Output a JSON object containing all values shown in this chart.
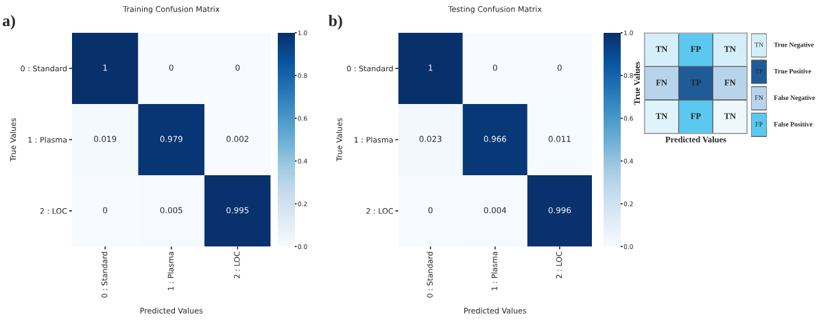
{
  "chart_data": [
    {
      "type": "heatmap",
      "title": "Training Confusion Matrix",
      "xlabel": "Predicted Values",
      "ylabel": "True Values",
      "annotations": [
        "a)"
      ],
      "categories": [
        "0 : Standard",
        "1 : Plasma",
        "2 : LOC"
      ],
      "y_categories": [
        "0 : Standard",
        "1 : Plasma",
        "2 : LOC"
      ],
      "cells": [
        [
          1,
          0,
          0
        ],
        [
          0.019,
          0.979,
          0.002
        ],
        [
          0,
          0.005,
          0.995
        ]
      ],
      "clim": [
        0,
        1
      ],
      "cticks": [
        {
          "value": 0,
          "label": "0.0"
        },
        {
          "value": 0.2,
          "label": "0.2"
        },
        {
          "value": 0.4,
          "label": "0.4"
        },
        {
          "value": 0.6,
          "label": "0.6"
        },
        {
          "value": 0.8,
          "label": "0.8"
        },
        {
          "value": 1,
          "label": "1.0"
        }
      ],
      "data_labels": true
    },
    {
      "type": "heatmap",
      "title": "Testing Confusion Matrix",
      "xlabel": "Predicted Values",
      "ylabel": "True Values",
      "annotations": [
        "b)"
      ],
      "categories": [
        "0 : Standard",
        "1 : Plasma",
        "2 : LOC"
      ],
      "y_categories": [
        "0 : Standard",
        "1 : Plasma",
        "2 : LOC"
      ],
      "cells": [
        [
          1,
          0,
          0
        ],
        [
          0.023,
          0.966,
          0.011
        ],
        [
          0,
          0.004,
          0.996
        ]
      ],
      "clim": [
        0,
        1
      ],
      "cticks": [
        {
          "value": 0,
          "label": "0.0"
        },
        {
          "value": 0.2,
          "label": "0.2"
        },
        {
          "value": 0.4,
          "label": "0.4"
        },
        {
          "value": 0.6,
          "label": "0.6"
        },
        {
          "value": 0.8,
          "label": "0.8"
        },
        {
          "value": 1,
          "label": "1.0"
        }
      ],
      "data_labels": true
    },
    {
      "type": "other",
      "xlabel": "Predicted Values",
      "ylabel": "True Values",
      "cell_labels": [
        [
          "TN",
          "FP",
          "TN"
        ],
        [
          "FN",
          "TP",
          "FN"
        ],
        [
          "TN",
          "FP",
          "TN"
        ]
      ],
      "colors": [
        [
          "#d4eefa",
          "#5cc8f0",
          "#d4eefa"
        ],
        [
          "#b8d4ec",
          "#1f5b97",
          "#b8d4ec"
        ],
        [
          "#dff3fb",
          "#5cc8f0",
          "#eef8fc"
        ]
      ]
    },
    {
      "type": "other",
      "cell_labels": [
        [
          "TN"
        ],
        [
          "TP"
        ],
        [
          "FN"
        ],
        [
          "FP"
        ]
      ],
      "colors": [
        [
          "#d4eefa"
        ],
        [
          "#1f5b97"
        ],
        [
          "#b8d4ec"
        ],
        [
          "#5cc8f0"
        ]
      ],
      "y2_categories": [
        "True Negative",
        "True Positive",
        "False Negative",
        "False Positive"
      ]
    }
  ]
}
